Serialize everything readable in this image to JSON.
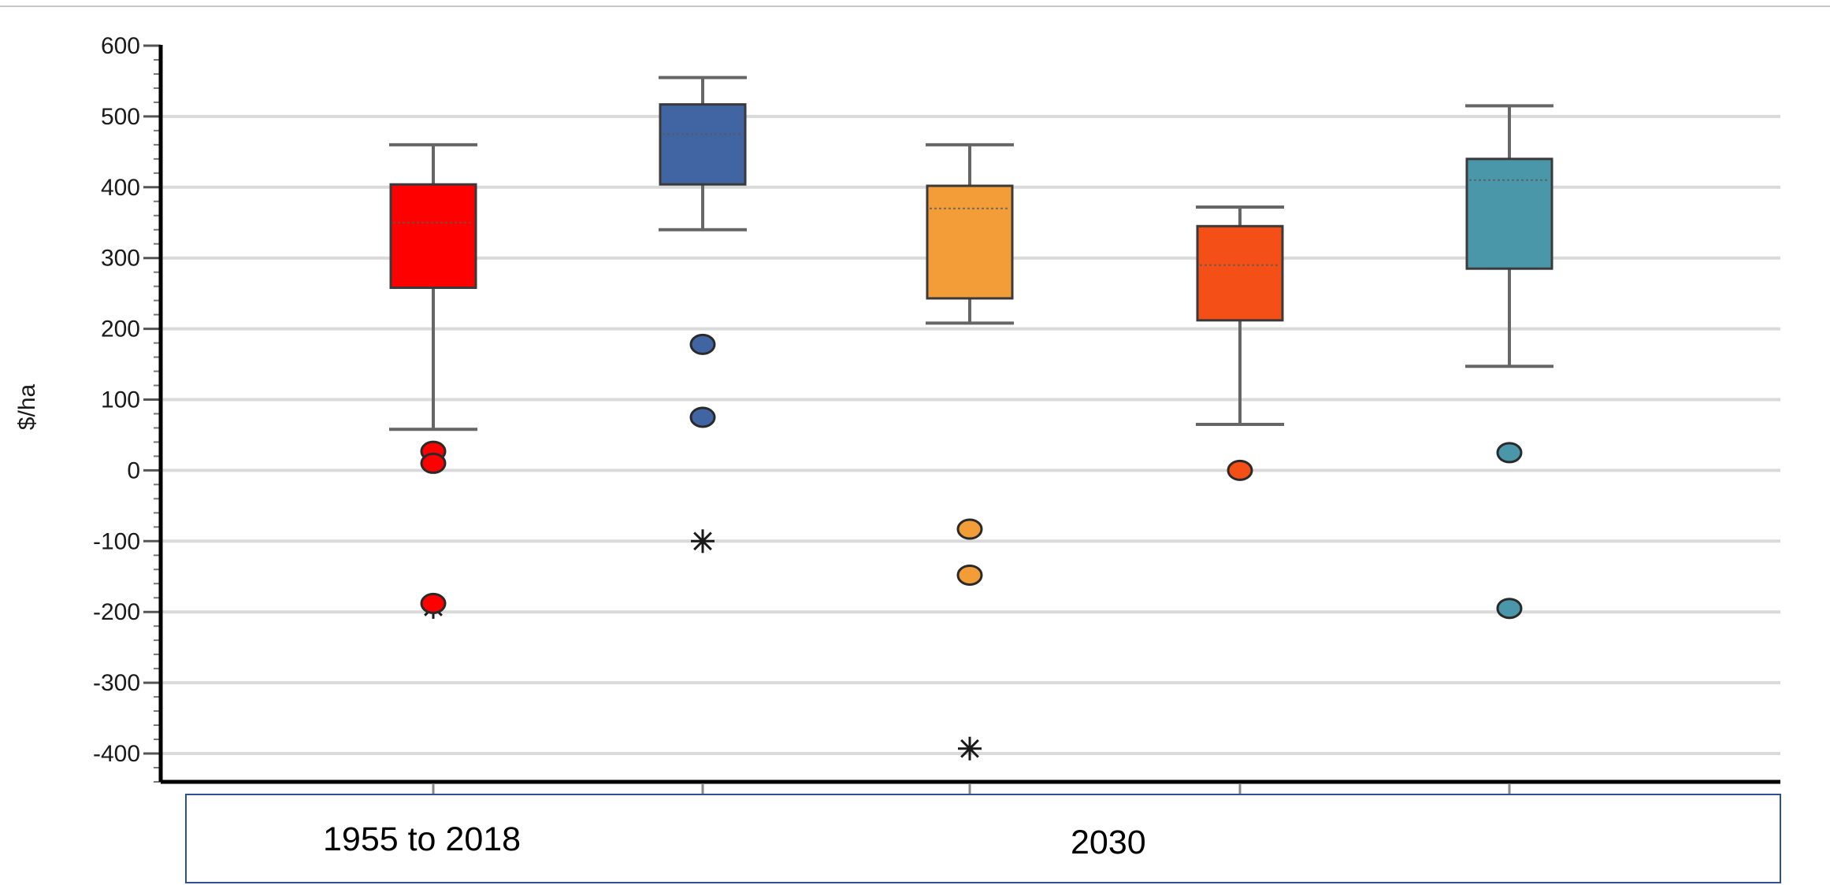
{
  "chart_data": {
    "type": "box",
    "title": "",
    "ylabel": "$/ha",
    "xlabel": "",
    "ylim": [
      -440,
      600
    ],
    "yticks": [
      600,
      500,
      400,
      300,
      200,
      100,
      0,
      -100,
      -200,
      -300,
      -400
    ],
    "yminor_step": 20,
    "grid": true,
    "period_labels": [
      "1955 to 2018",
      "2030"
    ],
    "colors": {
      "gridline": "#dadada",
      "axis": "#000000",
      "whisker": "#666666"
    },
    "series": [
      {
        "color": "#ff0000",
        "q1": 258,
        "median": 350,
        "q3": 404,
        "whisker_low": 58,
        "whisker_high": 460,
        "outliers": [
          27,
          10,
          -188
        ],
        "extremes": [
          -193
        ]
      },
      {
        "color": "#4065a2",
        "q1": 404,
        "median": 475,
        "q3": 517,
        "whisker_low": 340,
        "whisker_high": 555,
        "outliers": [
          178,
          75
        ],
        "extremes": [
          -100
        ]
      },
      {
        "color": "#f29d37",
        "q1": 243,
        "median": 370,
        "q3": 402,
        "whisker_low": 208,
        "whisker_high": 460,
        "outliers": [
          -83,
          -148
        ],
        "extremes": [
          -393
        ]
      },
      {
        "color": "#f34f16",
        "q1": 212,
        "median": 290,
        "q3": 345,
        "whisker_low": 65,
        "whisker_high": 372,
        "outliers": [
          0
        ],
        "extremes": []
      },
      {
        "color": "#4a97a9",
        "q1": 285,
        "median": 410,
        "q3": 440,
        "whisker_low": 147,
        "whisker_high": 515,
        "outliers": [
          25,
          -195
        ],
        "extremes": []
      }
    ]
  }
}
